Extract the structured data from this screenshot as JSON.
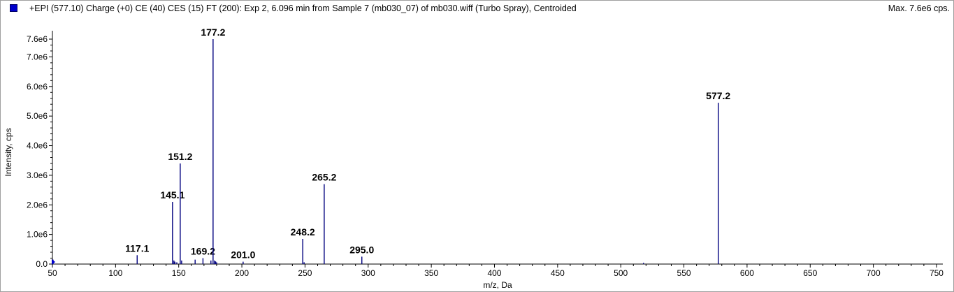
{
  "header": {
    "title": "+EPI (577.10) Charge (+0) CE (40) CES (15) FT (200): Exp 2, 6.096 min from Sample 7 (mb030_07) of mb030.wiff (Turbo Spray), Centroided",
    "max_label": "Max. 7.6e6 cps."
  },
  "colors": {
    "series": "#00007f",
    "legend": "#0000cc",
    "axis": "#000000"
  },
  "chart_data": {
    "type": "bar",
    "xlabel": "m/z, Da",
    "ylabel": "Intensity, cps",
    "xlim": [
      50,
      755
    ],
    "ylim": [
      0,
      7600000.0
    ],
    "x_ticks": [
      50,
      100,
      150,
      200,
      250,
      300,
      350,
      400,
      450,
      500,
      550,
      600,
      650,
      700,
      750
    ],
    "x_tick_labels": [
      "50",
      "100",
      "150",
      "200",
      "250",
      "300",
      "350",
      "400",
      "450",
      "500",
      "550",
      "600",
      "650",
      "700",
      "750"
    ],
    "y_ticks": [
      0,
      1000000,
      2000000,
      3000000,
      4000000,
      5000000,
      6000000,
      7000000,
      7600000
    ],
    "y_tick_labels": [
      "0.0",
      "1.0e6",
      "2.0e6",
      "3.0e6",
      "4.0e6",
      "5.0e6",
      "6.0e6",
      "7.0e6",
      "7.6e6"
    ],
    "series": [
      {
        "peaks": [
          {
            "mz": 50.5,
            "intensity": 150000
          },
          {
            "mz": 117.1,
            "intensity": 300000,
            "label": "117.1"
          },
          {
            "mz": 145.1,
            "intensity": 2100000,
            "label": "145.1"
          },
          {
            "mz": 146.2,
            "intensity": 120000
          },
          {
            "mz": 147.0,
            "intensity": 80000
          },
          {
            "mz": 148.5,
            "intensity": 60000
          },
          {
            "mz": 151.2,
            "intensity": 3400000,
            "label": "151.2"
          },
          {
            "mz": 152.3,
            "intensity": 120000
          },
          {
            "mz": 163.0,
            "intensity": 150000
          },
          {
            "mz": 169.2,
            "intensity": 200000,
            "label": "169.2"
          },
          {
            "mz": 175.5,
            "intensity": 120000
          },
          {
            "mz": 177.2,
            "intensity": 7600000,
            "label": "177.2"
          },
          {
            "mz": 178.3,
            "intensity": 120000
          },
          {
            "mz": 179.2,
            "intensity": 90000
          },
          {
            "mz": 180.0,
            "intensity": 60000
          },
          {
            "mz": 201.0,
            "intensity": 80000,
            "label": "201.0"
          },
          {
            "mz": 248.2,
            "intensity": 850000,
            "label": "248.2"
          },
          {
            "mz": 249.3,
            "intensity": 60000
          },
          {
            "mz": 265.2,
            "intensity": 2700000,
            "label": "265.2"
          },
          {
            "mz": 295.0,
            "intensity": 250000,
            "label": "295.0"
          },
          {
            "mz": 518.0,
            "intensity": 40000
          },
          {
            "mz": 577.2,
            "intensity": 5450000,
            "label": "577.2"
          }
        ]
      }
    ]
  }
}
